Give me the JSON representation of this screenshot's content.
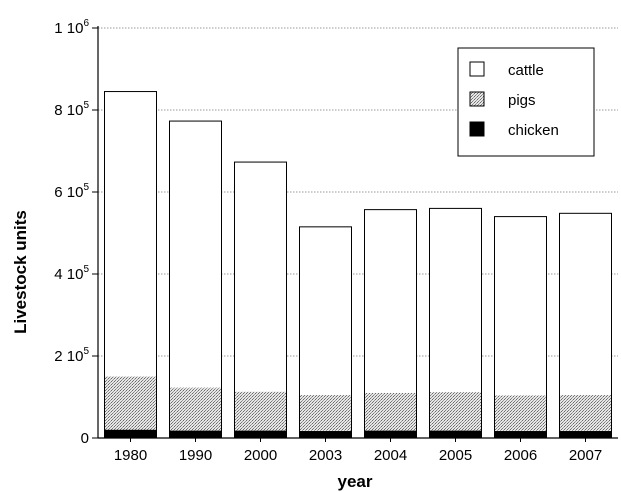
{
  "chart_data": {
    "type": "bar",
    "stacked": true,
    "categories": [
      "1980",
      "1990",
      "2000",
      "2003",
      "2004",
      "2005",
      "2006",
      "2007"
    ],
    "series": [
      {
        "name": "chicken",
        "values": [
          20000,
          18000,
          18000,
          17000,
          18000,
          18000,
          17000,
          17000
        ],
        "color": "#000000",
        "pattern": "solid"
      },
      {
        "name": "pigs",
        "values": [
          130000,
          105000,
          95000,
          88000,
          92000,
          94000,
          87000,
          88000
        ],
        "color": "#c8c8c8",
        "pattern": "dotted"
      },
      {
        "name": "cattle",
        "values": [
          695000,
          650000,
          560000,
          410000,
          447000,
          448000,
          436000,
          443000
        ],
        "color": "#ffffff",
        "pattern": "none"
      }
    ],
    "legend_order": [
      "cattle",
      "pigs",
      "chicken"
    ],
    "legend_position": "top-right",
    "xlabel": "year",
    "ylabel": "Livestock units",
    "ylim": [
      0,
      1000000
    ],
    "yticks": [
      {
        "value": 0,
        "label": "0",
        "exp": ""
      },
      {
        "value": 200000,
        "label": "2 10",
        "exp": "5"
      },
      {
        "value": 400000,
        "label": "4 10",
        "exp": "5"
      },
      {
        "value": 600000,
        "label": "6 10",
        "exp": "5"
      },
      {
        "value": 800000,
        "label": "8 10",
        "exp": "5"
      },
      {
        "value": 1000000,
        "label": "1 10",
        "exp": "6"
      }
    ],
    "grid": "horizontal-dotted"
  }
}
